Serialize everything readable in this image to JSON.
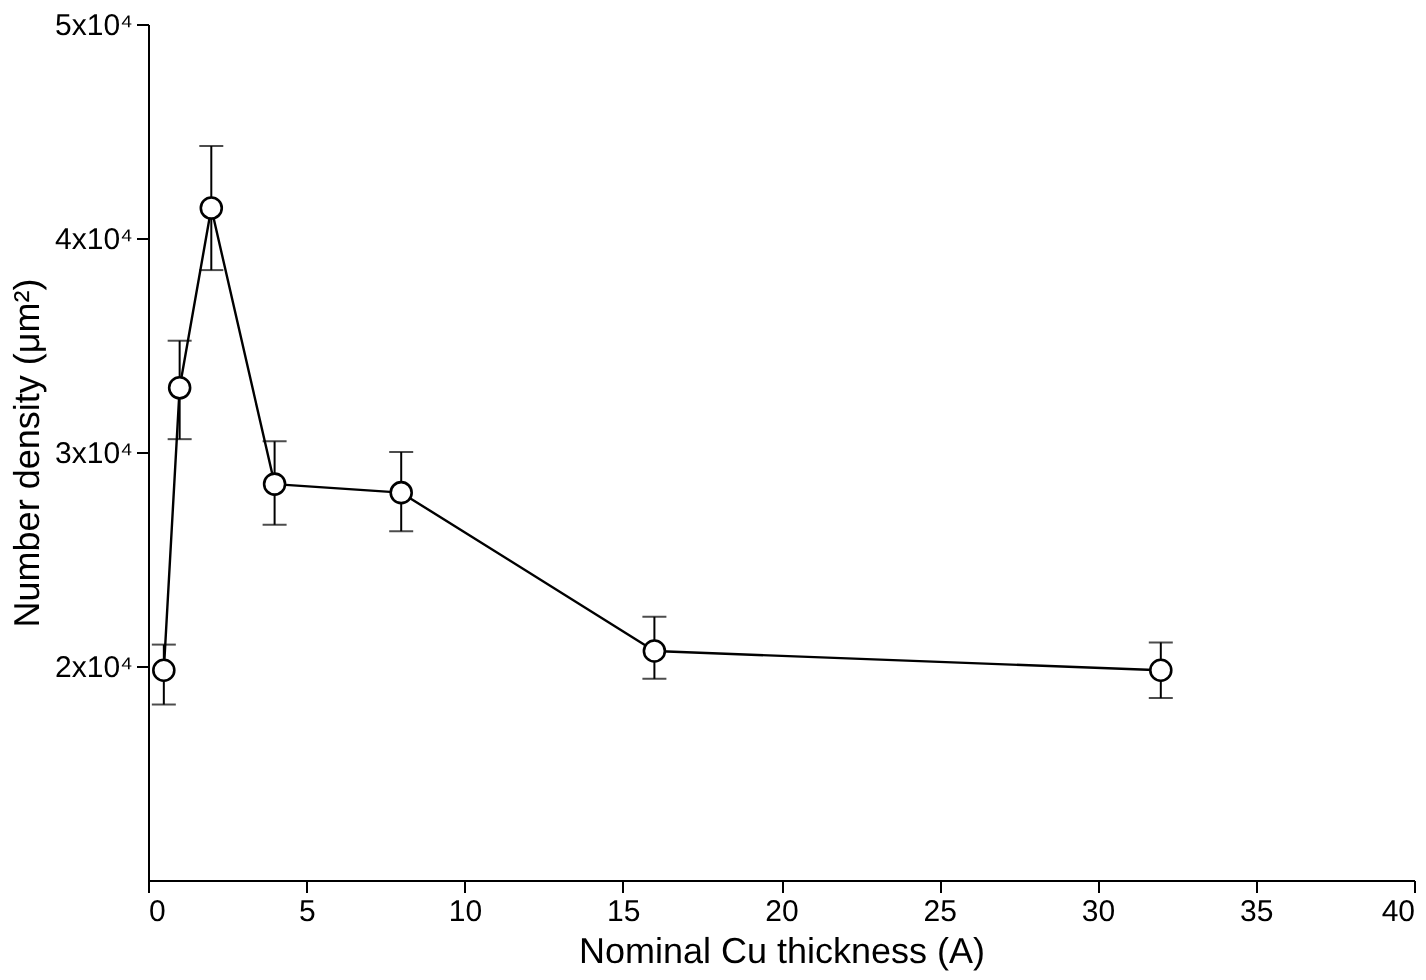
{
  "chart_data": {
    "type": "line",
    "xlabel": "Nominal Cu thickness (A)",
    "ylabel": "Number density (μm²)",
    "x": [
      0.5,
      1,
      2,
      4,
      8,
      16,
      32
    ],
    "series": [
      {
        "color": "#000000",
        "values": [
          19800,
          33000,
          41400,
          28500,
          28100,
          20700,
          19800
        ],
        "errors": [
          [
            18200,
            21000
          ],
          [
            30600,
            35200
          ],
          [
            38500,
            44300
          ],
          [
            26600,
            30500
          ],
          [
            26300,
            30000
          ],
          [
            19400,
            22300
          ],
          [
            18500,
            21100
          ]
        ]
      }
    ],
    "xlim": [
      0,
      40
    ],
    "xticks": [
      0,
      5,
      10,
      15,
      20,
      25,
      30,
      35,
      40
    ],
    "ylim": [
      10000,
      50000
    ],
    "yticks": [
      {
        "value": 20000,
        "label": "2x10⁴"
      },
      {
        "value": 30000,
        "label": "3x10⁴"
      },
      {
        "value": 40000,
        "label": "4x10⁴"
      },
      {
        "value": 50000,
        "label": "5x10⁴"
      }
    ],
    "marker": "circle",
    "line_style": "solid",
    "grid": false
  }
}
